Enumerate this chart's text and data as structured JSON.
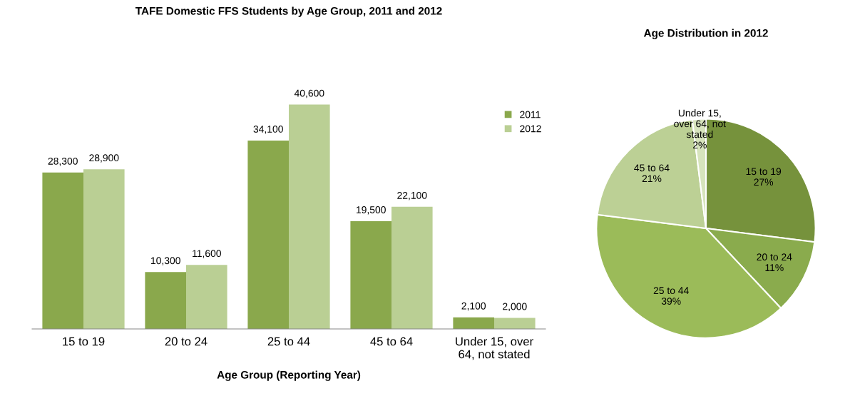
{
  "chart_data": [
    {
      "type": "bar",
      "title": "TAFE Domestic FFS Students by Age Group, 2011 and 2012",
      "xlabel": "Age Group (Reporting Year)",
      "categories": [
        "15 to 19",
        "20 to 24",
        "25 to 44",
        "45 to 64",
        "Under 15, over\n64, not stated"
      ],
      "series": [
        {
          "name": "2011",
          "color": "#8aa84c",
          "values": [
            28300,
            10300,
            34100,
            19500,
            2100
          ],
          "value_labels": [
            "28,300",
            "10,300",
            "34,100",
            "19,500",
            "2,100"
          ]
        },
        {
          "name": "2012",
          "color": "#bacf94",
          "values": [
            28900,
            11600,
            40600,
            22100,
            2000
          ],
          "value_labels": [
            "28,900",
            "11,600",
            "40,600",
            "22,100",
            "2,000"
          ]
        }
      ],
      "legend": "right",
      "grid": false,
      "tick_labels": "x"
    },
    {
      "type": "pie",
      "title": "Age Distribution in 2012",
      "categories": [
        "15 to 19",
        "20 to 24",
        "25 to 44",
        "45 to 64",
        "Under 15,\nover 64, not\nstated"
      ],
      "values": [
        27,
        11,
        39,
        21,
        2
      ],
      "colors": [
        "#76923c",
        "#8aab4d",
        "#9bbb59",
        "#bcd095",
        "#d7e4bd"
      ],
      "value_labels": [
        "27%",
        "11%",
        "39%",
        "21%",
        "2%"
      ],
      "legend": false
    }
  ]
}
